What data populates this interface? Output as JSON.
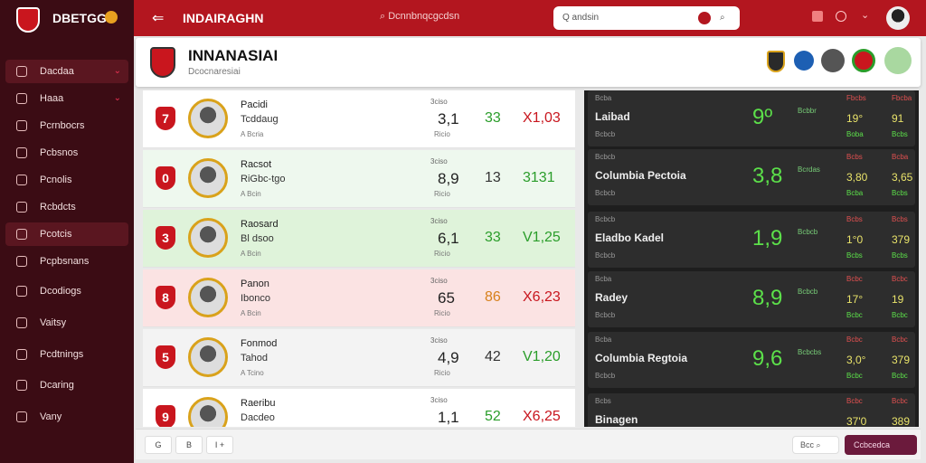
{
  "sidebar": {
    "brand": "DBETGG",
    "items": [
      {
        "label": "Dacdaa",
        "chevron": true,
        "active": true
      },
      {
        "label": "Haaa",
        "chevron": true
      },
      {
        "label": "Pcrnbocrs"
      },
      {
        "label": "Pcbsnos"
      },
      {
        "label": "Pcnolis"
      },
      {
        "label": "Rcbdcts"
      },
      {
        "label": "Pcotcis",
        "active": true
      },
      {
        "label": "Pcpbsnans"
      },
      {
        "label": "Dcodiogs"
      },
      {
        "label": "Vaitsy"
      },
      {
        "label": "Pcdtnings"
      },
      {
        "label": "Dcaring"
      },
      {
        "label": "Vany"
      }
    ]
  },
  "topbar": {
    "title": "INDAIRAGHN",
    "search": "Dcnnbnqcgcdsn",
    "search2": "Q andsin"
  },
  "header": {
    "title": "INNANASIAI",
    "subtitle": "Dcocnaresiai"
  },
  "rows": [
    {
      "rank": "7",
      "name": "Pacidi",
      "team": "Tcddaug",
      "sub": "A Bcria",
      "label": "3ciso",
      "value": "3,1",
      "note": "Ricio",
      "mid": "33",
      "mid_color": "#2a9d2a",
      "right": "X1,03",
      "right_color": "#c8161e",
      "bg": "#ffffff"
    },
    {
      "rank": "0",
      "name": "Racsot",
      "team": "RiGbc-tgo",
      "sub": "A Bcin",
      "label": "3ciso",
      "value": "8,9",
      "note": "Ricio",
      "mid": "13",
      "mid_color": "#333333",
      "right": "3131",
      "right_color": "#2a9d2a",
      "bg": "#eef8ee"
    },
    {
      "rank": "3",
      "name": "Raosard",
      "team": "Bl dsoo",
      "sub": "A Bcin",
      "label": "3ciso",
      "value": "6,1",
      "note": "Ricio",
      "mid": "33",
      "mid_color": "#2a9d2a",
      "right": "V1,25",
      "right_color": "#2a9d2a",
      "bg": "#dff3da"
    },
    {
      "rank": "8",
      "name": "Panon",
      "team": "Ibonco",
      "sub": "A Bcin",
      "label": "3ciso",
      "value": "65",
      "note": "Ricio",
      "mid": "86",
      "mid_color": "#d7801b",
      "right": "X6,23",
      "right_color": "#c8161e",
      "bg": "#fbe3e3"
    },
    {
      "rank": "5",
      "name": "Fonmod",
      "team": "Tahod",
      "sub": "A Tcino",
      "label": "3ciso",
      "value": "4,9",
      "note": "Ricio",
      "mid": "42",
      "mid_color": "#333333",
      "right": "V1,20",
      "right_color": "#2a9d2a",
      "bg": "#f3f3f3"
    },
    {
      "rank": "9",
      "name": "Raeribu",
      "team": "Dacdeo",
      "label": "3ciso",
      "value": "1,1",
      "mid": "52",
      "mid_color": "#2a9d2a",
      "right": "X6,25",
      "right_color": "#c8161e",
      "bg": "#ffffff"
    }
  ],
  "scores": [
    {
      "tag": "Bcba",
      "name": "Laibad",
      "meta": "Bcbcb",
      "score": "9º",
      "note": "Bcbbr",
      "c1": [
        "Fbcbs",
        "19°",
        "Boba"
      ],
      "c2": [
        "Fbcba",
        "91",
        "Bcbs"
      ]
    },
    {
      "tag": "Bcbcb",
      "name": "Columbia Pectoia",
      "meta": "Bcbcb",
      "score": "3,8",
      "note": "Bcrdas",
      "c1": [
        "Bcbs",
        "3,80",
        "Bcba"
      ],
      "c2": [
        "Bcba",
        "3,65",
        "Bcbs"
      ]
    },
    {
      "tag": "Bcbcb",
      "name": "Eladbo Kadel",
      "meta": "Bcbcb",
      "score": "1,9",
      "note": "Bcbcb",
      "c1": [
        "Bcbs",
        "1°0",
        "Bcbs"
      ],
      "c2": [
        "Bcbs",
        "379",
        "Bcbs"
      ]
    },
    {
      "tag": "Bcba",
      "name": "Radey",
      "meta": "Bcbcb",
      "score": "8,9",
      "note": "Bcbcb",
      "c1": [
        "Bcbc",
        "17°",
        "Bcbc"
      ],
      "c2": [
        "Bcbc",
        "19",
        "Bcbc"
      ]
    },
    {
      "tag": "Bcba",
      "name": "Columbia Regtoia",
      "meta": "Bcbcb",
      "score": "9,6",
      "note": "Bcbcbs",
      "c1": [
        "Bcbc",
        "3,0°",
        "Bcbc"
      ],
      "c2": [
        "Bcbc",
        "379",
        "Bcbc"
      ]
    },
    {
      "tag": "Bcbs",
      "name": "Binagen",
      "c1": [
        "Bcbc",
        "37'0"
      ],
      "c2": [
        "Bcbc",
        "389"
      ]
    }
  ],
  "footer": {
    "tabs": [
      "G",
      "B",
      "I +"
    ],
    "search": "Bcc",
    "button": "Ccbcedca"
  }
}
